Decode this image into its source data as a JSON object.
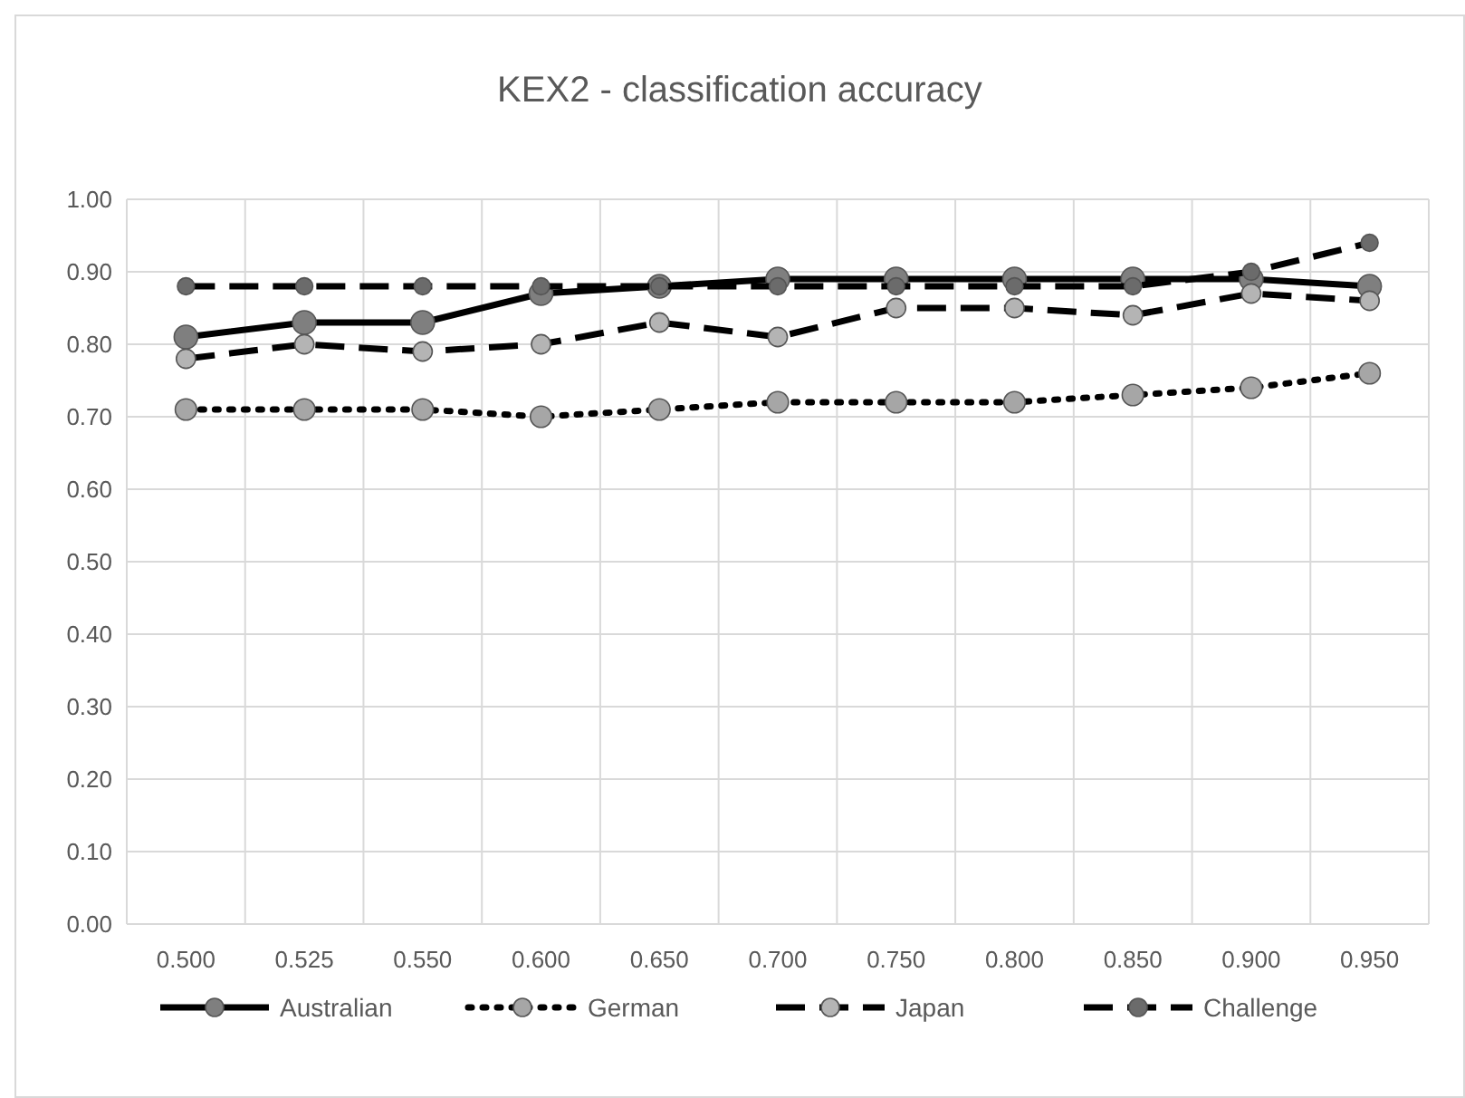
{
  "chart_data": {
    "type": "line",
    "title": "KEX2 - classification accuracy",
    "categories": [
      "0.500",
      "0.525",
      "0.550",
      "0.600",
      "0.650",
      "0.700",
      "0.750",
      "0.800",
      "0.850",
      "0.900",
      "0.950"
    ],
    "series": [
      {
        "name": "Australian",
        "color": "#7f7f7f",
        "line_style": "solid",
        "values": [
          0.81,
          0.83,
          0.83,
          0.87,
          0.88,
          0.89,
          0.89,
          0.89,
          0.89,
          0.89,
          0.88
        ]
      },
      {
        "name": "German",
        "color": "#a6a6a6",
        "line_style": "dotted",
        "values": [
          0.71,
          0.71,
          0.71,
          0.7,
          0.71,
          0.72,
          0.72,
          0.72,
          0.73,
          0.74,
          0.76
        ]
      },
      {
        "name": "Japan",
        "color": "#b4b4b4",
        "line_style": "dashed",
        "values": [
          0.78,
          0.8,
          0.79,
          0.8,
          0.83,
          0.81,
          0.85,
          0.85,
          0.84,
          0.87,
          0.86
        ]
      },
      {
        "name": "Challenge",
        "color": "#6b6b6b",
        "line_style": "dashed",
        "values": [
          0.88,
          0.88,
          0.88,
          0.88,
          0.88,
          0.88,
          0.88,
          0.88,
          0.88,
          0.9,
          0.94
        ]
      }
    ],
    "ylim": [
      0,
      1
    ],
    "yticks": [
      {
        "value": 0,
        "label": "0.00"
      },
      {
        "value": 0.1,
        "label": "0.10"
      },
      {
        "value": 0.2,
        "label": "0.20"
      },
      {
        "value": 0.3,
        "label": "0.30"
      },
      {
        "value": 0.4,
        "label": "0.40"
      },
      {
        "value": 0.5,
        "label": "0.50"
      },
      {
        "value": 0.6,
        "label": "0.60"
      },
      {
        "value": 0.7,
        "label": "0.70"
      },
      {
        "value": 0.8,
        "label": "0.80"
      },
      {
        "value": 0.9,
        "label": "0.90"
      },
      {
        "value": 1,
        "label": "1.00"
      }
    ],
    "grid": true,
    "legend": "bottom",
    "marker": "circle"
  }
}
